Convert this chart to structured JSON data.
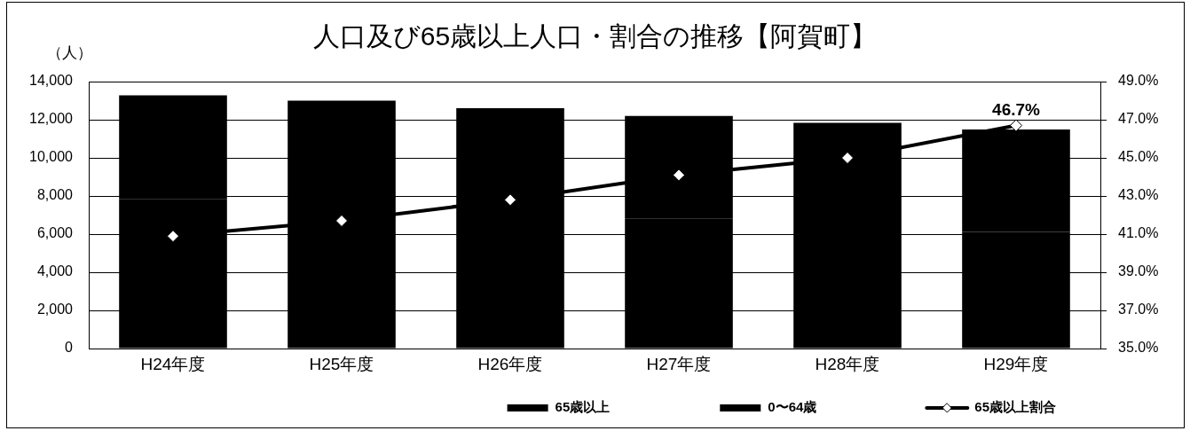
{
  "chart_data": {
    "type": "bar",
    "title": "人口及び65歳以上人口・割合の推移【阿賀町】",
    "ylabel": "（人）",
    "categories": [
      "H24年度",
      "H25年度",
      "H26年度",
      "H27年度",
      "H28年度",
      "H29年度"
    ],
    "series": [
      {
        "name": "0〜64歳",
        "color": "#000000",
        "values": [
          7850,
          7580,
          7210,
          6820,
          6510,
          6120
        ]
      },
      {
        "name": "65歳以上",
        "color": "#000000",
        "values": [
          5430,
          5420,
          5390,
          5380,
          5330,
          5370
        ]
      },
      {
        "name": "65歳以上割合",
        "type": "line",
        "axis": "y2",
        "color": "#000000",
        "values": [
          40.9,
          41.7,
          42.8,
          44.1,
          45.0,
          46.7
        ],
        "value_labels": [
          null,
          null,
          null,
          null,
          null,
          "46.7%"
        ]
      }
    ],
    "stacked": true,
    "ylim": [
      0,
      14000
    ],
    "yticks": [
      0,
      {
        "value": 2000,
        "label": "2,000"
      },
      {
        "value": 4000,
        "label": "4,000"
      },
      {
        "value": 6000,
        "label": "6,000"
      },
      {
        "value": 8000,
        "label": "8,000"
      },
      {
        "value": 10000,
        "label": "10,000"
      },
      {
        "value": 12000,
        "label": "12,000"
      },
      {
        "value": 14000,
        "label": "14,000"
      }
    ],
    "y2lim": [
      35,
      49
    ],
    "y2ticks": [
      {
        "value": 35,
        "label": "35.0%"
      },
      {
        "value": 37,
        "label": "37.0%"
      },
      {
        "value": 39,
        "label": "39.0%"
      },
      {
        "value": 41,
        "label": "41.0%"
      },
      {
        "value": 43,
        "label": "43.0%"
      },
      {
        "value": 45,
        "label": "45.0%"
      },
      {
        "value": 47,
        "label": "47.0%"
      },
      {
        "value": 49,
        "label": "49.0%"
      }
    ],
    "grid": "y",
    "legend": "bottom",
    "marker": "diamond",
    "line_style": "solid"
  }
}
